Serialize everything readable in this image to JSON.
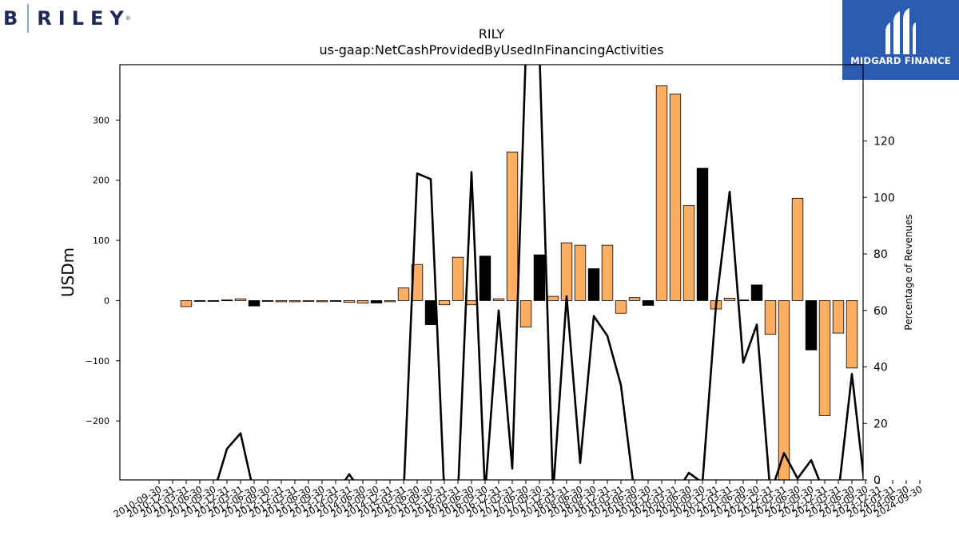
{
  "logos": {
    "left": {
      "letter": "B",
      "word": "RILEY",
      "reg": "®"
    },
    "right": {
      "text": "MIDGARD FINANCE"
    }
  },
  "chart_data": {
    "type": "bar",
    "title": "RILY",
    "subtitle": "us-gaap:NetCashProvidedByUsedInFinancingActivities",
    "ylabel": "USDm",
    "y2label": "Percentage of Revenues",
    "ylim": [
      -298,
      392
    ],
    "y2lim": [
      0,
      147
    ],
    "yticks": [
      -200,
      -100,
      0,
      100,
      200,
      300
    ],
    "y2ticks": [
      0,
      20,
      40,
      60,
      80,
      100,
      120
    ],
    "grid": false,
    "colors": {
      "orange": "#fdae61",
      "black": "#000000",
      "line": "#000000"
    },
    "categories": [
      "2010-09-30",
      "2010-12-31",
      "2011-03-31",
      "2011-06-30",
      "2011-09-30",
      "2011-12-31",
      "2012-03-31",
      "2012-06-30",
      "2012-09-30",
      "2012-12-31",
      "2013-03-31",
      "2013-06-30",
      "2013-09-30",
      "2013-12-31",
      "2014-03-31",
      "2014-06-30",
      "2014-09-30",
      "2014-12-31",
      "2015-03-31",
      "2015-06-30",
      "2015-09-30",
      "2015-12-31",
      "2016-03-31",
      "2016-06-30",
      "2016-09-30",
      "2016-12-31",
      "2017-03-31",
      "2017-06-30",
      "2017-09-30",
      "2017-12-31",
      "2018-03-31",
      "2018-06-30",
      "2018-09-30",
      "2018-12-31",
      "2019-03-31",
      "2019-06-30",
      "2019-09-30",
      "2019-12-31",
      "2020-03-31",
      "2020-06-30",
      "2020-09-30",
      "2020-12-31",
      "2021-03-31",
      "2021-06-30",
      "2021-09-30",
      "2021-12-31",
      "2022-03-31",
      "2022-06-30",
      "2022-09-30",
      "2022-12-31",
      "2023-03-31",
      "2023-06-30",
      "2023-09-30",
      "2023-12-31",
      "2024-03-31",
      "2024-06-30",
      "2024-09-30"
    ],
    "xtick_labels": [
      "2010-09-30",
      "2010-12-31",
      "2011-03-31",
      "2011-06-30",
      "2011-09-30",
      "2011-12-31",
      "2012-03-31",
      "2012-06-30",
      "2012-09-30",
      "2012-12-31",
      "2013-03-31",
      "2013-06-30",
      "2013-09-30",
      "2013-12-31",
      "2014-03-31",
      "2014-06-30",
      "2014-09-30",
      "2014-12-31",
      "2015-03-31",
      "2015-06-30",
      "2015-09-30",
      "2015-12-31",
      "2016-03-31",
      "2016-06-30",
      "2016-09-30",
      "2016-12-31",
      "2017-03-31",
      "2017-06-30",
      "2017-09-30",
      "2017-12-31",
      "2018-03-31",
      "2018-06-30",
      "2018-09-30",
      "2018-12-31",
      "2019-03-31",
      "2019-06-30",
      "2019-09-30",
      "2019-12-31",
      "2020-03-31",
      "2020-06-30",
      "2020-09-30",
      "2020-12-31",
      "2021-03-31",
      "2021-06-30",
      "2021-09-30",
      "2021-12-31",
      "2022-03-31",
      "2022-06-30",
      "2022-09-30",
      "2022-12-31",
      "2023-03-31",
      "2023-06-30",
      "2023-09-30",
      "2023-12-31",
      "2024-03-31",
      "2024-06-30",
      "2024-09-30"
    ],
    "bars": [
      {
        "x": "2011-03-31",
        "value": -10,
        "color": "orange"
      },
      {
        "x": "2011-06-30",
        "value": -1,
        "color": "black"
      },
      {
        "x": "2011-09-30",
        "value": -1,
        "color": "black"
      },
      {
        "x": "2011-12-31",
        "value": 1,
        "color": "black"
      },
      {
        "x": "2012-03-31",
        "value": 3,
        "color": "orange"
      },
      {
        "x": "2012-06-30",
        "value": -9,
        "color": "black"
      },
      {
        "x": "2012-09-30",
        "value": -1,
        "color": "black"
      },
      {
        "x": "2012-12-31",
        "value": -2,
        "color": "orange"
      },
      {
        "x": "2013-03-31",
        "value": -2,
        "color": "orange"
      },
      {
        "x": "2013-06-30",
        "value": -1,
        "color": "orange"
      },
      {
        "x": "2013-09-30",
        "value": -2,
        "color": "orange"
      },
      {
        "x": "2013-12-31",
        "value": -1,
        "color": "black"
      },
      {
        "x": "2014-03-31",
        "value": -3,
        "color": "orange"
      },
      {
        "x": "2014-06-30",
        "value": -4,
        "color": "orange"
      },
      {
        "x": "2014-09-30",
        "value": -4,
        "color": "black"
      },
      {
        "x": "2014-12-31",
        "value": -2,
        "color": "orange"
      },
      {
        "x": "2015-03-31",
        "value": 21,
        "color": "orange"
      },
      {
        "x": "2015-06-30",
        "value": 60,
        "color": "orange"
      },
      {
        "x": "2015-09-30",
        "value": -40,
        "color": "black"
      },
      {
        "x": "2015-12-31",
        "value": -7,
        "color": "orange"
      },
      {
        "x": "2016-03-31",
        "value": 72,
        "color": "orange"
      },
      {
        "x": "2016-06-30",
        "value": -7,
        "color": "orange"
      },
      {
        "x": "2016-09-30",
        "value": 74,
        "color": "black"
      },
      {
        "x": "2016-12-31",
        "value": 3,
        "color": "orange"
      },
      {
        "x": "2017-03-31",
        "value": 247,
        "color": "orange"
      },
      {
        "x": "2017-06-30",
        "value": -44,
        "color": "orange"
      },
      {
        "x": "2017-09-30",
        "value": 76,
        "color": "black"
      },
      {
        "x": "2017-12-31",
        "value": 7,
        "color": "orange"
      },
      {
        "x": "2018-03-31",
        "value": 96,
        "color": "orange"
      },
      {
        "x": "2018-06-30",
        "value": 92,
        "color": "orange"
      },
      {
        "x": "2018-09-30",
        "value": 53,
        "color": "black"
      },
      {
        "x": "2018-12-31",
        "value": 92,
        "color": "orange"
      },
      {
        "x": "2019-03-31",
        "value": -21,
        "color": "orange"
      },
      {
        "x": "2019-06-30",
        "value": 5,
        "color": "orange"
      },
      {
        "x": "2019-09-30",
        "value": -8,
        "color": "black"
      },
      {
        "x": "2019-12-31",
        "value": 357,
        "color": "orange"
      },
      {
        "x": "2020-03-31",
        "value": 343,
        "color": "orange"
      },
      {
        "x": "2020-06-30",
        "value": 158,
        "color": "orange"
      },
      {
        "x": "2020-09-30",
        "value": 220,
        "color": "black"
      },
      {
        "x": "2020-12-31",
        "value": -14,
        "color": "orange"
      },
      {
        "x": "2021-03-31",
        "value": 4,
        "color": "orange"
      },
      {
        "x": "2021-06-30",
        "value": 1,
        "color": "black"
      },
      {
        "x": "2021-09-30",
        "value": 26,
        "color": "black"
      },
      {
        "x": "2021-12-31",
        "value": -56,
        "color": "orange"
      },
      {
        "x": "2022-03-31",
        "value": -300,
        "color": "orange"
      },
      {
        "x": "2022-06-30",
        "value": 170,
        "color": "orange"
      },
      {
        "x": "2022-09-30",
        "value": -82,
        "color": "black"
      },
      {
        "x": "2022-12-31",
        "value": -191,
        "color": "orange"
      },
      {
        "x": "2023-03-31",
        "value": -54,
        "color": "orange"
      },
      {
        "x": "2023-06-30",
        "value": -112,
        "color": "orange"
      }
    ],
    "line_series": {
      "name": "Percentage of Revenues",
      "points": [
        {
          "x": "2011-09-30",
          "y": -5
        },
        {
          "x": "2011-12-31",
          "y": 11
        },
        {
          "x": "2012-03-31",
          "y": 16.5
        },
        {
          "x": "2012-06-30",
          "y": -5
        },
        {
          "x": "2013-12-31",
          "y": -5
        },
        {
          "x": "2014-03-31",
          "y": 2
        },
        {
          "x": "2014-06-30",
          "y": -5
        },
        {
          "x": "2015-03-31",
          "y": -5
        },
        {
          "x": "2015-06-30",
          "y": 108.5
        },
        {
          "x": "2015-09-30",
          "y": 106.5
        },
        {
          "x": "2015-12-31",
          "y": -5
        },
        {
          "x": "2016-03-31",
          "y": -5
        },
        {
          "x": "2016-06-30",
          "y": 109
        },
        {
          "x": "2016-09-30",
          "y": -5
        },
        {
          "x": "2016-12-31",
          "y": 60
        },
        {
          "x": "2017-03-31",
          "y": 4
        },
        {
          "x": "2017-06-30",
          "y": 152
        },
        {
          "x": "2017-09-30",
          "y": 152
        },
        {
          "x": "2017-12-31",
          "y": -5
        },
        {
          "x": "2018-03-31",
          "y": 65
        },
        {
          "x": "2018-06-30",
          "y": 6
        },
        {
          "x": "2018-09-30",
          "y": 58
        },
        {
          "x": "2018-12-31",
          "y": 51
        },
        {
          "x": "2019-03-31",
          "y": 33.5
        },
        {
          "x": "2019-06-30",
          "y": -5
        },
        {
          "x": "2020-03-31",
          "y": -5
        },
        {
          "x": "2020-06-30",
          "y": 2.5
        },
        {
          "x": "2020-09-30",
          "y": -1
        },
        {
          "x": "2020-12-31",
          "y": 62
        },
        {
          "x": "2021-03-31",
          "y": 102
        },
        {
          "x": "2021-06-30",
          "y": 41.5
        },
        {
          "x": "2021-09-30",
          "y": 55
        },
        {
          "x": "2021-12-31",
          "y": -5
        },
        {
          "x": "2022-03-31",
          "y": 9.5
        },
        {
          "x": "2022-06-30",
          "y": 0.5
        },
        {
          "x": "2022-09-30",
          "y": 7
        },
        {
          "x": "2022-12-31",
          "y": -5
        },
        {
          "x": "2023-03-31",
          "y": -5
        },
        {
          "x": "2023-06-30",
          "y": 37.5
        },
        {
          "x": "2023-09-30",
          "y": -5
        }
      ]
    }
  }
}
